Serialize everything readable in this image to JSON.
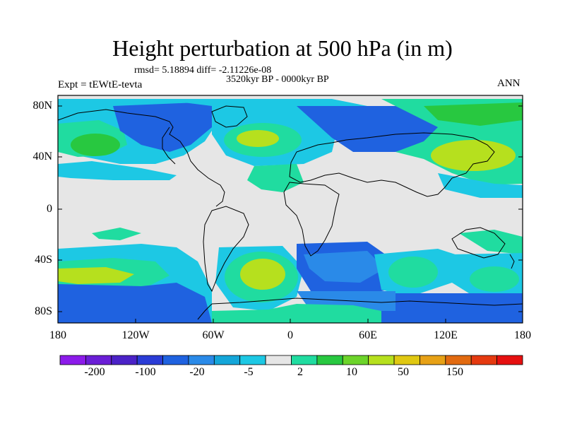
{
  "title": "Height perturbation at 500 hPa (in m)",
  "stats": "rmsd= 5.18894 diff= -2.11226e-08",
  "experiment": "Expt = tEWtE-tevta",
  "period": "3520kyr BP - 0000kyr BP",
  "season": "ANN",
  "lat_ticks": [
    "80N",
    "40N",
    "0",
    "40S",
    "80S"
  ],
  "lon_ticks": [
    "180",
    "120W",
    "60W",
    "0",
    "60E",
    "120E",
    "180"
  ],
  "colorbar": {
    "colors": [
      "#8c1bea",
      "#6a1ed6",
      "#4b22c7",
      "#2a3cd6",
      "#1f62e0",
      "#2a8ae8",
      "#14a6d9",
      "#1dc8e4",
      "#e6e6e6",
      "#20dca0",
      "#28c840",
      "#6cd42a",
      "#b6e01e",
      "#e0c812",
      "#e7a116",
      "#e26a10",
      "#e53a10",
      "#e61010"
    ],
    "labels": [
      "-200",
      "-100",
      "-20",
      "-5",
      "2",
      "10",
      "50",
      "150"
    ]
  },
  "palette": {
    "land": "#e6e6e6",
    "light_blue": "#1dc8e4",
    "mid_blue": "#2a8ae8",
    "blue": "#1f62e0",
    "cyan": "#14a6d9",
    "green": "#20dca0",
    "bright_green": "#28c840",
    "yellow_green": "#b6e01e"
  }
}
